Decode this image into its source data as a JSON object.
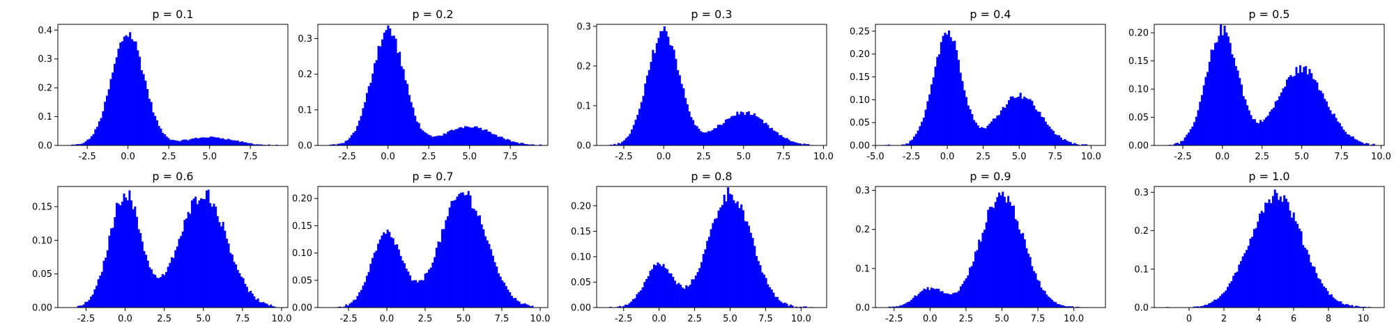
{
  "figure": {
    "bar_color": "#0000ff",
    "background": "#ffffff"
  },
  "chart_data": [
    {
      "type": "bar",
      "title": "p = 0.1",
      "x_range": [
        -4.3,
        9.8
      ],
      "ylim": [
        0,
        0.42
      ],
      "x_ticks": [
        "-2.5",
        "0.0",
        "2.5",
        "5.0",
        "7.5"
      ],
      "x_tick_values": [
        -2.5,
        0,
        2.5,
        5,
        7.5
      ],
      "y_ticks": [
        "0.0",
        "0.1",
        "0.2",
        "0.3",
        "0.4"
      ],
      "y_tick_values": [
        0,
        0.1,
        0.2,
        0.3,
        0.4
      ],
      "bin_range": [
        -3.6,
        9.4
      ],
      "bin_count": 110,
      "components": [
        {
          "weight": 0.9,
          "mean": 0,
          "sd": 1
        },
        {
          "weight": 0.1,
          "mean": 5,
          "sd": 1.5
        }
      ],
      "peak": 0.39,
      "peak_x": 0
    },
    {
      "type": "bar",
      "title": "p = 0.2",
      "x_range": [
        -4.3,
        9.8
      ],
      "ylim": [
        0,
        0.34
      ],
      "x_ticks": [
        "-2.5",
        "0.0",
        "2.5",
        "5.0",
        "7.5"
      ],
      "x_tick_values": [
        -2.5,
        0,
        2.5,
        5,
        7.5
      ],
      "y_ticks": [
        "0.0",
        "0.1",
        "0.2",
        "0.3"
      ],
      "y_tick_values": [
        0,
        0.1,
        0.2,
        0.3
      ],
      "bin_range": [
        -3.6,
        9.4
      ],
      "bin_count": 110,
      "components": [
        {
          "weight": 0.8,
          "mean": 0,
          "sd": 1
        },
        {
          "weight": 0.2,
          "mean": 5,
          "sd": 1.5
        }
      ],
      "peak": 0.325,
      "peak_x": 0
    },
    {
      "type": "bar",
      "title": "p = 0.3",
      "x_range": [
        -4.2,
        10.2
      ],
      "ylim": [
        0,
        0.305
      ],
      "x_ticks": [
        "-2.5",
        "0.0",
        "2.5",
        "5.0",
        "7.5",
        "10.0"
      ],
      "x_tick_values": [
        -2.5,
        0,
        2.5,
        5,
        7.5,
        10
      ],
      "y_ticks": [
        "0.0",
        "0.1",
        "0.2",
        "0.3"
      ],
      "y_tick_values": [
        0,
        0.1,
        0.2,
        0.3
      ],
      "bin_range": [
        -3.5,
        9.7
      ],
      "bin_count": 110,
      "components": [
        {
          "weight": 0.7,
          "mean": 0,
          "sd": 1
        },
        {
          "weight": 0.3,
          "mean": 5,
          "sd": 1.5
        }
      ],
      "peak": 0.29,
      "peak_x": 0
    },
    {
      "type": "bar",
      "title": "p = 0.4",
      "x_range": [
        -5.0,
        11.0
      ],
      "ylim": [
        0,
        0.265
      ],
      "x_ticks": [
        "-5.0",
        "-2.5",
        "0.0",
        "2.5",
        "5.0",
        "7.5",
        "10.0"
      ],
      "x_tick_values": [
        -5,
        -2.5,
        0,
        2.5,
        5,
        7.5,
        10
      ],
      "y_ticks": [
        "0.00",
        "0.05",
        "0.10",
        "0.15",
        "0.20",
        "0.25"
      ],
      "y_tick_values": [
        0,
        0.05,
        0.1,
        0.15,
        0.2,
        0.25
      ],
      "bin_range": [
        -4.4,
        10.4
      ],
      "bin_count": 110,
      "components": [
        {
          "weight": 0.6,
          "mean": 0,
          "sd": 1
        },
        {
          "weight": 0.4,
          "mean": 5,
          "sd": 1.5
        }
      ],
      "peak": 0.25,
      "peak_x": 0
    },
    {
      "type": "bar",
      "title": "p = 0.5",
      "x_range": [
        -4.3,
        10.2
      ],
      "ylim": [
        0,
        0.215
      ],
      "x_ticks": [
        "-2.5",
        "0.0",
        "2.5",
        "5.0",
        "7.5",
        "10.0"
      ],
      "x_tick_values": [
        -2.5,
        0,
        2.5,
        5,
        7.5,
        10
      ],
      "y_ticks": [
        "0.00",
        "0.05",
        "0.10",
        "0.15",
        "0.20"
      ],
      "y_tick_values": [
        0,
        0.05,
        0.1,
        0.15,
        0.2
      ],
      "bin_range": [
        -3.5,
        9.6
      ],
      "bin_count": 110,
      "components": [
        {
          "weight": 0.5,
          "mean": 0,
          "sd": 1
        },
        {
          "weight": 0.5,
          "mean": 5,
          "sd": 1.5
        }
      ],
      "peak": 0.205,
      "peak_x": 0
    },
    {
      "type": "bar",
      "title": "p = 0.6",
      "x_range": [
        -4.3,
        10.4
      ],
      "ylim": [
        0,
        0.18
      ],
      "x_ticks": [
        "-2.5",
        "0.0",
        "2.5",
        "5.0",
        "7.5",
        "10.0"
      ],
      "x_tick_values": [
        -2.5,
        0,
        2.5,
        5,
        7.5,
        10
      ],
      "y_ticks": [
        "0.00",
        "0.05",
        "0.10",
        "0.15"
      ],
      "y_tick_values": [
        0,
        0.05,
        0.1,
        0.15
      ],
      "bin_range": [
        -3.3,
        9.6
      ],
      "bin_count": 110,
      "components": [
        {
          "weight": 0.4,
          "mean": 0,
          "sd": 1
        },
        {
          "weight": 0.6,
          "mean": 5,
          "sd": 1.5
        }
      ],
      "peak": 0.17,
      "peak_x": 5
    },
    {
      "type": "bar",
      "title": "p = 0.7",
      "x_range": [
        -4.5,
        10.5
      ],
      "ylim": [
        0,
        0.222
      ],
      "x_ticks": [
        "-2.5",
        "0.0",
        "2.5",
        "5.0",
        "7.5",
        "10.0"
      ],
      "x_tick_values": [
        -2.5,
        0,
        2.5,
        5,
        7.5,
        10
      ],
      "y_ticks": [
        "0.00",
        "0.05",
        "0.10",
        "0.15",
        "0.20"
      ],
      "y_tick_values": [
        0,
        0.05,
        0.1,
        0.15,
        0.2
      ],
      "bin_range": [
        -3.7,
        9.8
      ],
      "bin_count": 110,
      "components": [
        {
          "weight": 0.3,
          "mean": 0,
          "sd": 1
        },
        {
          "weight": 0.7,
          "mean": 5,
          "sd": 1.5
        }
      ],
      "peak": 0.21,
      "peak_x": 5
    },
    {
      "type": "bar",
      "title": "p = 0.8",
      "x_range": [
        -4.4,
        11.8
      ],
      "ylim": [
        0,
        0.238
      ],
      "x_ticks": [
        "-2.5",
        "0.0",
        "2.5",
        "5.0",
        "7.5",
        "10.0"
      ],
      "x_tick_values": [
        -2.5,
        0,
        2.5,
        5,
        7.5,
        10
      ],
      "y_ticks": [
        "0.00",
        "0.05",
        "0.10",
        "0.15",
        "0.20"
      ],
      "y_tick_values": [
        0,
        0.05,
        0.1,
        0.15,
        0.2
      ],
      "bin_range": [
        -3.5,
        11.2
      ],
      "bin_count": 110,
      "components": [
        {
          "weight": 0.2,
          "mean": 0,
          "sd": 1
        },
        {
          "weight": 0.8,
          "mean": 5,
          "sd": 1.5
        }
      ],
      "peak": 0.225,
      "peak_x": 5
    },
    {
      "type": "bar",
      "title": "p = 0.9",
      "x_range": [
        -3.8,
        12.2
      ],
      "ylim": [
        0,
        0.31
      ],
      "x_ticks": [
        "-2.5",
        "0.0",
        "2.5",
        "5.0",
        "7.5",
        "10.0"
      ],
      "x_tick_values": [
        -2.5,
        0,
        2.5,
        5,
        7.5,
        10
      ],
      "y_ticks": [
        "0.0",
        "0.1",
        "0.2",
        "0.3"
      ],
      "y_tick_values": [
        0,
        0.1,
        0.2,
        0.3
      ],
      "bin_range": [
        -2.9,
        11.1
      ],
      "bin_count": 110,
      "components": [
        {
          "weight": 0.1,
          "mean": 0,
          "sd": 1
        },
        {
          "weight": 0.9,
          "mean": 5,
          "sd": 1.5
        }
      ],
      "peak": 0.29,
      "peak_x": 5
    },
    {
      "type": "bar",
      "title": "p = 1.0",
      "x_range": [
        -2.0,
        11.2
      ],
      "ylim": [
        0,
        0.315
      ],
      "x_ticks": [
        "0",
        "2",
        "4",
        "6",
        "8",
        "10"
      ],
      "x_tick_values": [
        0,
        2,
        4,
        6,
        8,
        10
      ],
      "y_ticks": [
        "0.0",
        "0.1",
        "0.2",
        "0.3"
      ],
      "y_tick_values": [
        0,
        0.1,
        0.2,
        0.3
      ],
      "bin_range": [
        -1.3,
        10.6
      ],
      "bin_count": 110,
      "components": [
        {
          "weight": 0.0,
          "mean": 0,
          "sd": 1
        },
        {
          "weight": 1.0,
          "mean": 5,
          "sd": 1.5
        }
      ],
      "peak": 0.295,
      "peak_x": 5
    }
  ]
}
